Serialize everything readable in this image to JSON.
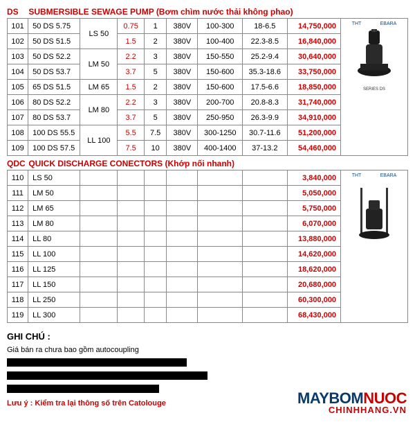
{
  "sections": {
    "ds": {
      "code": "DS",
      "title": "SUBMERSIBLE SEWAGE PUMP (Bơm chìm nước thải không phao)"
    },
    "qdc": {
      "code": "QDC",
      "title": "QUICK DISCHARGE CONECTORS (Khớp nối nhanh)"
    }
  },
  "logos": {
    "l1": "THT",
    "l2": "EBARA"
  },
  "ds_rows": [
    {
      "idx": "101",
      "model": "50 DS 5.75",
      "frame": "LS 50",
      "frame_span": 2,
      "pw": "0.75",
      "cur": "1",
      "volt": "380V",
      "flow": "100-300",
      "head": "18-6.5",
      "price": "14,750,000"
    },
    {
      "idx": "102",
      "model": "50 DS 51.5",
      "frame": "",
      "pw": "1.5",
      "cur": "2",
      "volt": "380V",
      "flow": "100-400",
      "head": "22.3-8.5",
      "price": "16,840,000"
    },
    {
      "idx": "103",
      "model": "50 DS 52.2",
      "frame": "LM 50",
      "frame_span": 2,
      "pw": "2.2",
      "cur": "3",
      "volt": "380V",
      "flow": "150-550",
      "head": "25.2-9.4",
      "price": "30,640,000"
    },
    {
      "idx": "104",
      "model": "50 DS 53.7",
      "frame": "",
      "pw": "3.7",
      "cur": "5",
      "volt": "380V",
      "flow": "150-600",
      "head": "35.3-18.6",
      "price": "33,750,000"
    },
    {
      "idx": "105",
      "model": "65 DS 51.5",
      "frame": "LM 65",
      "frame_span": 1,
      "pw": "1.5",
      "cur": "2",
      "volt": "380V",
      "flow": "150-600",
      "head": "17.5-6.6",
      "price": "18,850,000"
    },
    {
      "idx": "106",
      "model": "80 DS 52.2",
      "frame": "LM 80",
      "frame_span": 2,
      "pw": "2.2",
      "cur": "3",
      "volt": "380V",
      "flow": "200-700",
      "head": "20.8-8.3",
      "price": "31,740,000"
    },
    {
      "idx": "107",
      "model": "80 DS 53.7",
      "frame": "",
      "pw": "3.7",
      "cur": "5",
      "volt": "380V",
      "flow": "250-950",
      "head": "26.3-9.9",
      "price": "34,910,000"
    },
    {
      "idx": "108",
      "model": "100 DS 55.5",
      "frame": "LL 100",
      "frame_span": 2,
      "pw": "5.5",
      "cur": "7.5",
      "volt": "380V",
      "flow": "300-1250",
      "head": "30.7-11.6",
      "price": "51,200,000"
    },
    {
      "idx": "109",
      "model": "100 DS 57.5",
      "frame": "",
      "pw": "7.5",
      "cur": "10",
      "volt": "380V",
      "flow": "400-1400",
      "head": "37-13.2",
      "price": "54,460,000"
    }
  ],
  "qdc_rows": [
    {
      "idx": "110",
      "model": "LS 50",
      "price": "3,840,000"
    },
    {
      "idx": "111",
      "model": "LM 50",
      "price": "5,050,000"
    },
    {
      "idx": "112",
      "model": "LM 65",
      "price": "5,750,000"
    },
    {
      "idx": "113",
      "model": "LM 80",
      "price": "6,070,000"
    },
    {
      "idx": "114",
      "model": "LL 80",
      "price": "13,880,000"
    },
    {
      "idx": "115",
      "model": "LL 100",
      "price": "14,620,000"
    },
    {
      "idx": "116",
      "model": "LL 125",
      "price": "18,620,000"
    },
    {
      "idx": "117",
      "model": "LL 150",
      "price": "20,680,000"
    },
    {
      "idx": "118",
      "model": "LL 250",
      "price": "60,300,000"
    },
    {
      "idx": "119",
      "model": "LL 300",
      "price": "68,430,000"
    }
  ],
  "notes": {
    "heading": "GHI CHÚ :",
    "line1": "Giá bán ra chưa bao gồm autocoupling",
    "luu_y": "Lưu ý : Kiểm tra lại thông số trên Catolouge"
  },
  "watermark": {
    "pre": "MAYBOM",
    "post": "NUOC",
    "sub": "CHINHHANG.VN"
  },
  "img_caption": "SERIES DS"
}
